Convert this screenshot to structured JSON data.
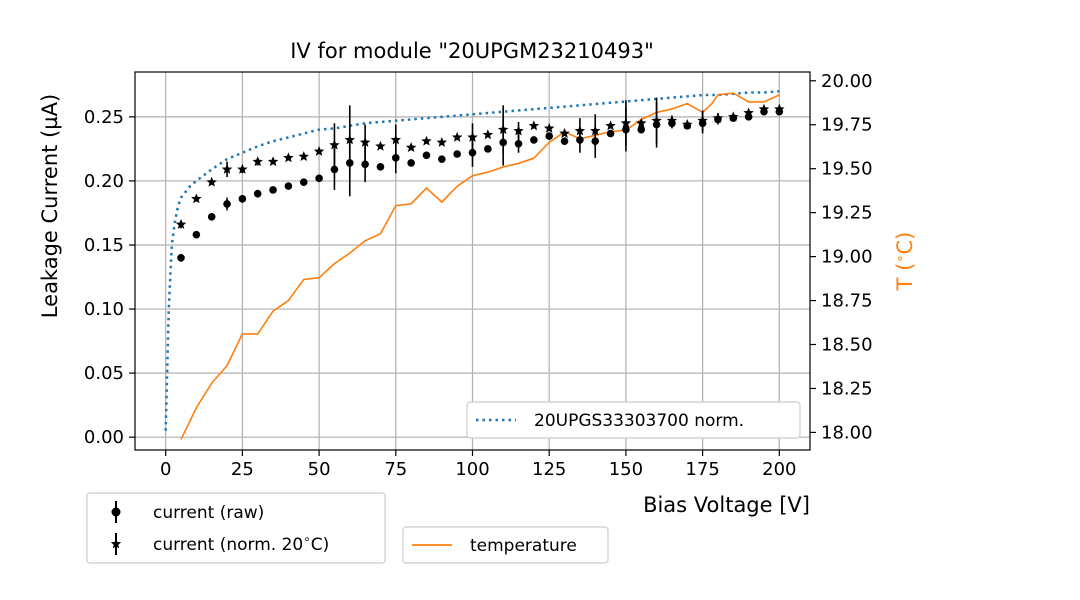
{
  "chart_data": {
    "type": "scatter",
    "title": "IV for module \"20UPGM23210493\"",
    "xlabel": "Bias Voltage [V]",
    "ylabel": "Leakage Current (µA)",
    "y2label": "T (°C)",
    "xlim": [
      -10,
      210
    ],
    "ylim": [
      -0.01,
      0.285
    ],
    "y2lim": [
      17.9,
      20.05
    ],
    "xticks": [
      0,
      25,
      50,
      75,
      100,
      125,
      150,
      175,
      200
    ],
    "yticks": [
      0.0,
      0.05,
      0.1,
      0.15,
      0.2,
      0.25
    ],
    "y2ticks": [
      18.0,
      18.25,
      18.5,
      18.75,
      19.0,
      19.25,
      19.5,
      19.75,
      20.0
    ],
    "xtick_labels": [
      "0",
      "25",
      "50",
      "75",
      "100",
      "125",
      "150",
      "175",
      "200"
    ],
    "ytick_labels": [
      "0.00",
      "0.05",
      "0.10",
      "0.15",
      "0.20",
      "0.25"
    ],
    "y2tick_labels": [
      "18.00",
      "18.25",
      "18.50",
      "18.75",
      "19.00",
      "19.25",
      "19.50",
      "19.75",
      "20.00"
    ],
    "grid": true,
    "colors": {
      "raw": "#000000",
      "norm": "#000000",
      "reference": "#1f77b4",
      "temperature": "#ff7f0e"
    },
    "series": [
      {
        "name": "current (raw)",
        "axis": "left",
        "marker": "circle",
        "x": [
          5,
          10,
          15,
          20,
          25,
          30,
          35,
          40,
          45,
          50,
          55,
          60,
          65,
          70,
          75,
          80,
          85,
          90,
          95,
          100,
          105,
          110,
          115,
          120,
          125,
          130,
          135,
          140,
          145,
          150,
          155,
          160,
          165,
          170,
          175,
          180,
          185,
          190,
          195,
          200
        ],
        "y": [
          0.14,
          0.158,
          0.172,
          0.182,
          0.186,
          0.19,
          0.193,
          0.196,
          0.199,
          0.202,
          0.209,
          0.214,
          0.213,
          0.211,
          0.218,
          0.214,
          0.22,
          0.217,
          0.221,
          0.222,
          0.225,
          0.23,
          0.229,
          0.232,
          0.235,
          0.231,
          0.232,
          0.231,
          0.237,
          0.24,
          0.24,
          0.244,
          0.245,
          0.243,
          0.245,
          0.248,
          0.249,
          0.25,
          0.254,
          0.254
        ],
        "yerr": [
          0.003,
          0.002,
          0.002,
          0.005,
          0.003,
          0.003,
          0.002,
          0.002,
          0.002,
          0.002,
          0.016,
          0.026,
          0.014,
          0.002,
          0.012,
          0.002,
          0.002,
          0.002,
          0.002,
          0.011,
          0.002,
          0.018,
          0.007,
          0.002,
          0.002,
          0.002,
          0.01,
          0.013,
          0.002,
          0.017,
          0.002,
          0.018,
          0.004,
          0.002,
          0.008,
          0.004,
          0.002,
          0.002,
          0.002,
          0.002
        ]
      },
      {
        "name": "current (norm. 20 °C)",
        "axis": "left",
        "marker": "star",
        "x": [
          5,
          10,
          15,
          20,
          25,
          30,
          35,
          40,
          45,
          50,
          55,
          60,
          65,
          70,
          75,
          80,
          85,
          90,
          95,
          100,
          105,
          110,
          115,
          120,
          125,
          130,
          135,
          140,
          145,
          150,
          155,
          160,
          165,
          170,
          175,
          180,
          185,
          190,
          195,
          200
        ],
        "y": [
          0.166,
          0.186,
          0.199,
          0.209,
          0.209,
          0.215,
          0.215,
          0.218,
          0.219,
          0.223,
          0.228,
          0.232,
          0.23,
          0.227,
          0.232,
          0.226,
          0.231,
          0.23,
          0.234,
          0.234,
          0.236,
          0.24,
          0.239,
          0.243,
          0.241,
          0.237,
          0.239,
          0.239,
          0.243,
          0.245,
          0.245,
          0.247,
          0.247,
          0.244,
          0.247,
          0.249,
          0.25,
          0.253,
          0.256,
          0.256
        ],
        "yerr": [
          0.003,
          0.002,
          0.002,
          0.006,
          0.003,
          0.003,
          0.002,
          0.002,
          0.002,
          0.002,
          0.017,
          0.027,
          0.014,
          0.002,
          0.012,
          0.002,
          0.002,
          0.002,
          0.002,
          0.011,
          0.002,
          0.019,
          0.007,
          0.002,
          0.002,
          0.002,
          0.01,
          0.013,
          0.002,
          0.018,
          0.002,
          0.018,
          0.004,
          0.002,
          0.008,
          0.004,
          0.002,
          0.002,
          0.002,
          0.002
        ]
      },
      {
        "name": "20UPGS33303700 norm.",
        "axis": "left",
        "style": "dotted",
        "x": [
          0,
          1,
          2,
          3,
          4,
          5,
          8,
          10,
          15,
          20,
          25,
          30,
          35,
          40,
          45,
          50,
          55,
          60,
          65,
          70,
          75,
          80,
          85,
          90,
          95,
          100,
          105,
          110,
          115,
          120,
          125,
          130,
          135,
          140,
          145,
          150,
          155,
          160,
          165,
          170,
          175,
          180,
          185,
          190,
          195,
          200
        ],
        "y": [
          0.005,
          0.1,
          0.15,
          0.168,
          0.18,
          0.187,
          0.196,
          0.2,
          0.209,
          0.217,
          0.222,
          0.227,
          0.231,
          0.234,
          0.237,
          0.24,
          0.241,
          0.243,
          0.245,
          0.246,
          0.247,
          0.248,
          0.249,
          0.25,
          0.251,
          0.252,
          0.253,
          0.254,
          0.255,
          0.256,
          0.257,
          0.258,
          0.259,
          0.26,
          0.261,
          0.262,
          0.263,
          0.264,
          0.265,
          0.266,
          0.267,
          0.267,
          0.268,
          0.269,
          0.269,
          0.27
        ]
      },
      {
        "name": "temperature",
        "axis": "right",
        "style": "solid",
        "x": [
          5,
          10,
          15,
          20,
          25,
          30,
          35,
          40,
          45,
          50,
          55,
          60,
          65,
          70,
          75,
          80,
          85,
          90,
          95,
          100,
          105,
          110,
          115,
          120,
          125,
          130,
          135,
          140,
          145,
          150,
          155,
          160,
          165,
          170,
          175,
          178,
          180,
          185,
          190,
          195,
          200
        ],
        "y": [
          17.96,
          18.14,
          18.28,
          18.38,
          18.56,
          18.56,
          18.69,
          18.75,
          18.87,
          18.88,
          18.96,
          19.02,
          19.09,
          19.13,
          19.29,
          19.3,
          19.39,
          19.31,
          19.4,
          19.46,
          19.48,
          19.51,
          19.53,
          19.56,
          19.65,
          19.71,
          19.67,
          19.69,
          19.71,
          19.72,
          19.78,
          19.82,
          19.84,
          19.87,
          19.82,
          19.87,
          19.92,
          19.93,
          19.88,
          19.88,
          19.92
        ]
      }
    ],
    "legends": [
      {
        "placement": "lower-right-inside",
        "entries": [
          "20UPGS33303700 norm."
        ]
      },
      {
        "placement": "below-left",
        "entries": [
          "current (raw)",
          "current (norm. 20 °C)"
        ]
      },
      {
        "placement": "below-center",
        "entries": [
          "temperature"
        ]
      }
    ]
  },
  "legend_labels": {
    "reference": "20UPGS33303700 norm.",
    "raw": "current (raw)",
    "norm_prefix": "current (norm. 20",
    "norm_suffix": "C)",
    "temperature": "temperature"
  },
  "y2label_parts": {
    "prefix": "T (",
    "suffix": "C)"
  }
}
